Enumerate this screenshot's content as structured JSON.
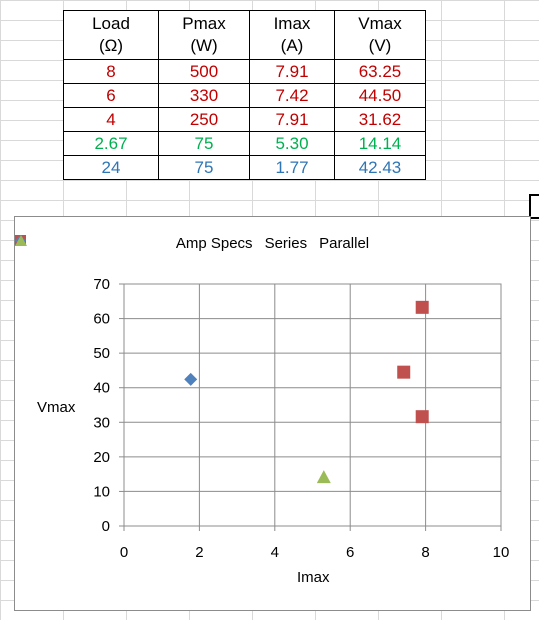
{
  "table": {
    "headers": [
      {
        "line1": "Load",
        "line2": "(Ω)"
      },
      {
        "line1": "Pmax",
        "line2": "(W)"
      },
      {
        "line1": "Imax",
        "line2": "(A)"
      },
      {
        "line1": "Vmax",
        "line2": "(V)"
      }
    ],
    "rows": [
      {
        "cells": [
          "8",
          "500",
          "7.91",
          "63.25"
        ],
        "color": "#c00000"
      },
      {
        "cells": [
          "6",
          "330",
          "7.42",
          "44.50"
        ],
        "color": "#c00000"
      },
      {
        "cells": [
          "4",
          "250",
          "7.91",
          "31.62"
        ],
        "color": "#c00000"
      },
      {
        "cells": [
          "2.67",
          "75",
          "5.30",
          "14.14"
        ],
        "color": "#00b050"
      },
      {
        "cells": [
          "24",
          "75",
          "1.77",
          "42.43"
        ],
        "color": "#2e75b6"
      }
    ]
  },
  "chart_data": {
    "type": "scatter",
    "xlabel": "Imax",
    "ylabel": "Vmax",
    "xlim": [
      0,
      10
    ],
    "ylim": [
      0,
      70
    ],
    "xticks": [
      0,
      2,
      4,
      6,
      8,
      10
    ],
    "yticks": [
      0,
      10,
      20,
      30,
      40,
      50,
      60,
      70
    ],
    "grid": true,
    "legend_position": "top",
    "series": [
      {
        "name": "Amp Specs",
        "marker": "square",
        "color": "#c0504d",
        "points": [
          [
            7.91,
            63.25
          ],
          [
            7.42,
            44.5
          ],
          [
            7.91,
            31.62
          ]
        ]
      },
      {
        "name": "Series",
        "marker": "diamond",
        "color": "#4f81bd",
        "points": [
          [
            1.77,
            42.43
          ]
        ]
      },
      {
        "name": "Parallel",
        "marker": "triangle",
        "color": "#9bbb59",
        "points": [
          [
            5.3,
            14.14
          ]
        ]
      }
    ]
  }
}
